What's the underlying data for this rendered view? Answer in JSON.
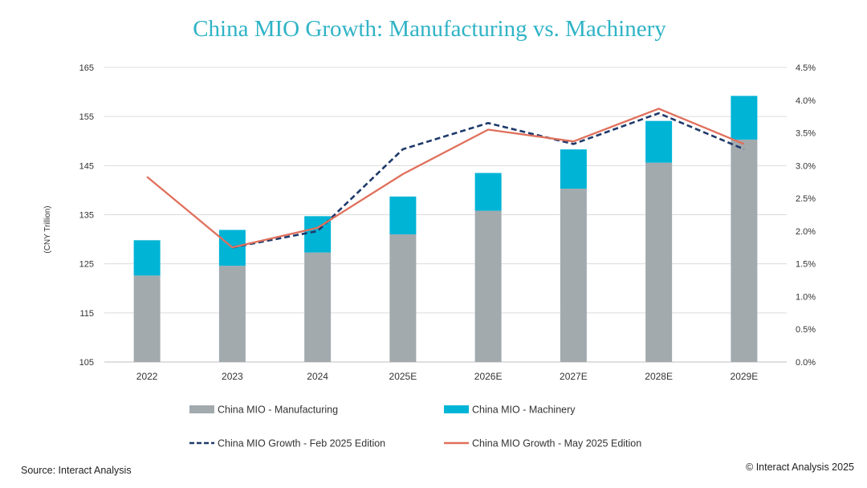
{
  "chart_data": {
    "type": "bar+line",
    "title": "China MIO Growth: Manufacturing vs. Machinery",
    "ylabel": "(CNY Trillion)",
    "ylim": [
      105,
      165
    ],
    "yticks": [
      105,
      115,
      125,
      135,
      145,
      155,
      165
    ],
    "y2lim": [
      0,
      4.5
    ],
    "y2ticks": [
      "0.0%",
      "0.5%",
      "1.0%",
      "1.5%",
      "2.0%",
      "2.5%",
      "3.0%",
      "3.5%",
      "4.0%",
      "4.5%"
    ],
    "categories": [
      "2022",
      "2023",
      "2024",
      "2025E",
      "2026E",
      "2027E",
      "2028E",
      "2029E"
    ],
    "bar_series": [
      {
        "name": "China MIO - Manufacturing",
        "color": "#a2aaae",
        "values": [
          122.6,
          124.6,
          127.3,
          131.0,
          135.8,
          140.3,
          145.6,
          150.3
        ]
      },
      {
        "name": "China MIO - Machinery",
        "color": "#00b4d6",
        "values": [
          7.2,
          7.3,
          7.4,
          7.7,
          7.7,
          8.0,
          8.5,
          8.9
        ]
      }
    ],
    "line_series": [
      {
        "name": "China MIO Growth - Feb 2025 Edition",
        "color": "#1f3a6b",
        "dash": true,
        "values": [
          null,
          1.75,
          2.0,
          3.25,
          3.65,
          3.33,
          3.8,
          3.25
        ]
      },
      {
        "name": "China MIO Growth - May 2025 Edition",
        "color": "#e0705c",
        "dash": false,
        "values": [
          2.83,
          1.75,
          2.05,
          2.87,
          3.55,
          3.37,
          3.87,
          3.33
        ]
      }
    ]
  },
  "footer": {
    "source": "Source: Interact Analysis",
    "copyright": "© Interact Analysis 2025"
  }
}
